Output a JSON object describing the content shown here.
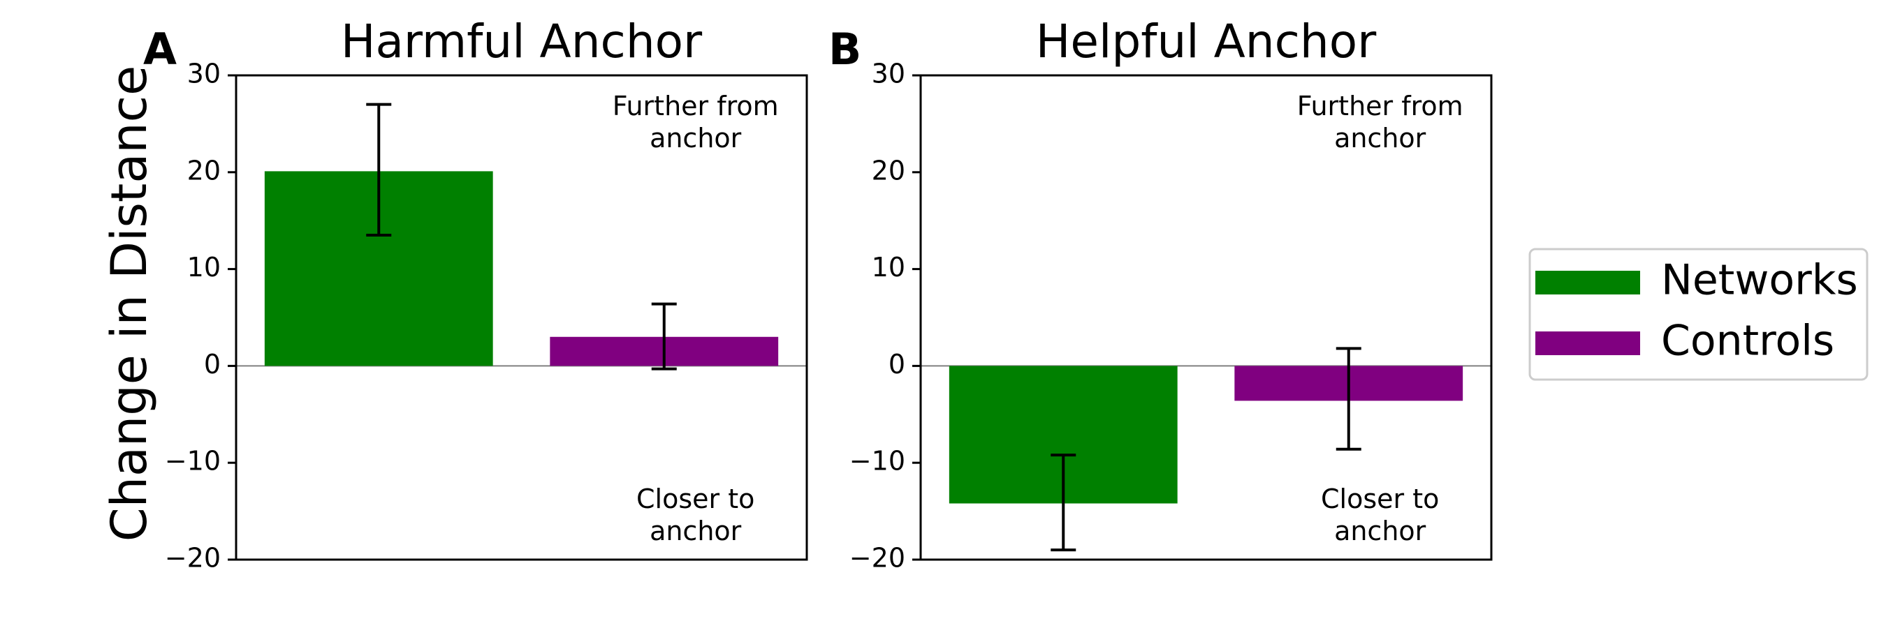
{
  "figure": {
    "ylabel": "Change in Distance"
  },
  "chart_data": [
    {
      "type": "bar",
      "panel_letter": "A",
      "title": "Harmful Anchor",
      "ylabel": "Change in Distance",
      "ylim": [
        -20,
        30
      ],
      "yticks": [
        30,
        20,
        10,
        0,
        -10,
        -20
      ],
      "ytick_labels": [
        "30",
        "20",
        "10",
        "0",
        "−10",
        "−20"
      ],
      "categories": [
        "Networks",
        "Controls"
      ],
      "values": [
        20.1,
        3.0
      ],
      "error_low": [
        13.5,
        -0.3
      ],
      "error_high": [
        27.0,
        6.4
      ],
      "colors": [
        "#008000",
        "#800080"
      ],
      "annotations": {
        "top": [
          "Further from",
          "anchor"
        ],
        "bottom": [
          "Closer to",
          "anchor"
        ]
      },
      "grid": false,
      "zero_line": true
    },
    {
      "type": "bar",
      "panel_letter": "B",
      "title": "Helpful Anchor",
      "ylim": [
        -20,
        30
      ],
      "yticks": [
        30,
        20,
        10,
        0,
        -10,
        -20
      ],
      "ytick_labels": [
        "30",
        "20",
        "10",
        "0",
        "−10",
        "−20"
      ],
      "categories": [
        "Networks",
        "Controls"
      ],
      "values": [
        -14.2,
        -3.6
      ],
      "error_low": [
        -19.0,
        -8.6
      ],
      "error_high": [
        -9.2,
        1.8
      ],
      "colors": [
        "#008000",
        "#800080"
      ],
      "annotations": {
        "top": [
          "Further from",
          "anchor"
        ],
        "bottom": [
          "Closer to",
          "anchor"
        ]
      },
      "grid": false,
      "zero_line": true
    }
  ],
  "legend": {
    "placement": "right",
    "entries": [
      {
        "label": "Networks",
        "color": "#008000"
      },
      {
        "label": "Controls",
        "color": "#800080"
      }
    ]
  }
}
